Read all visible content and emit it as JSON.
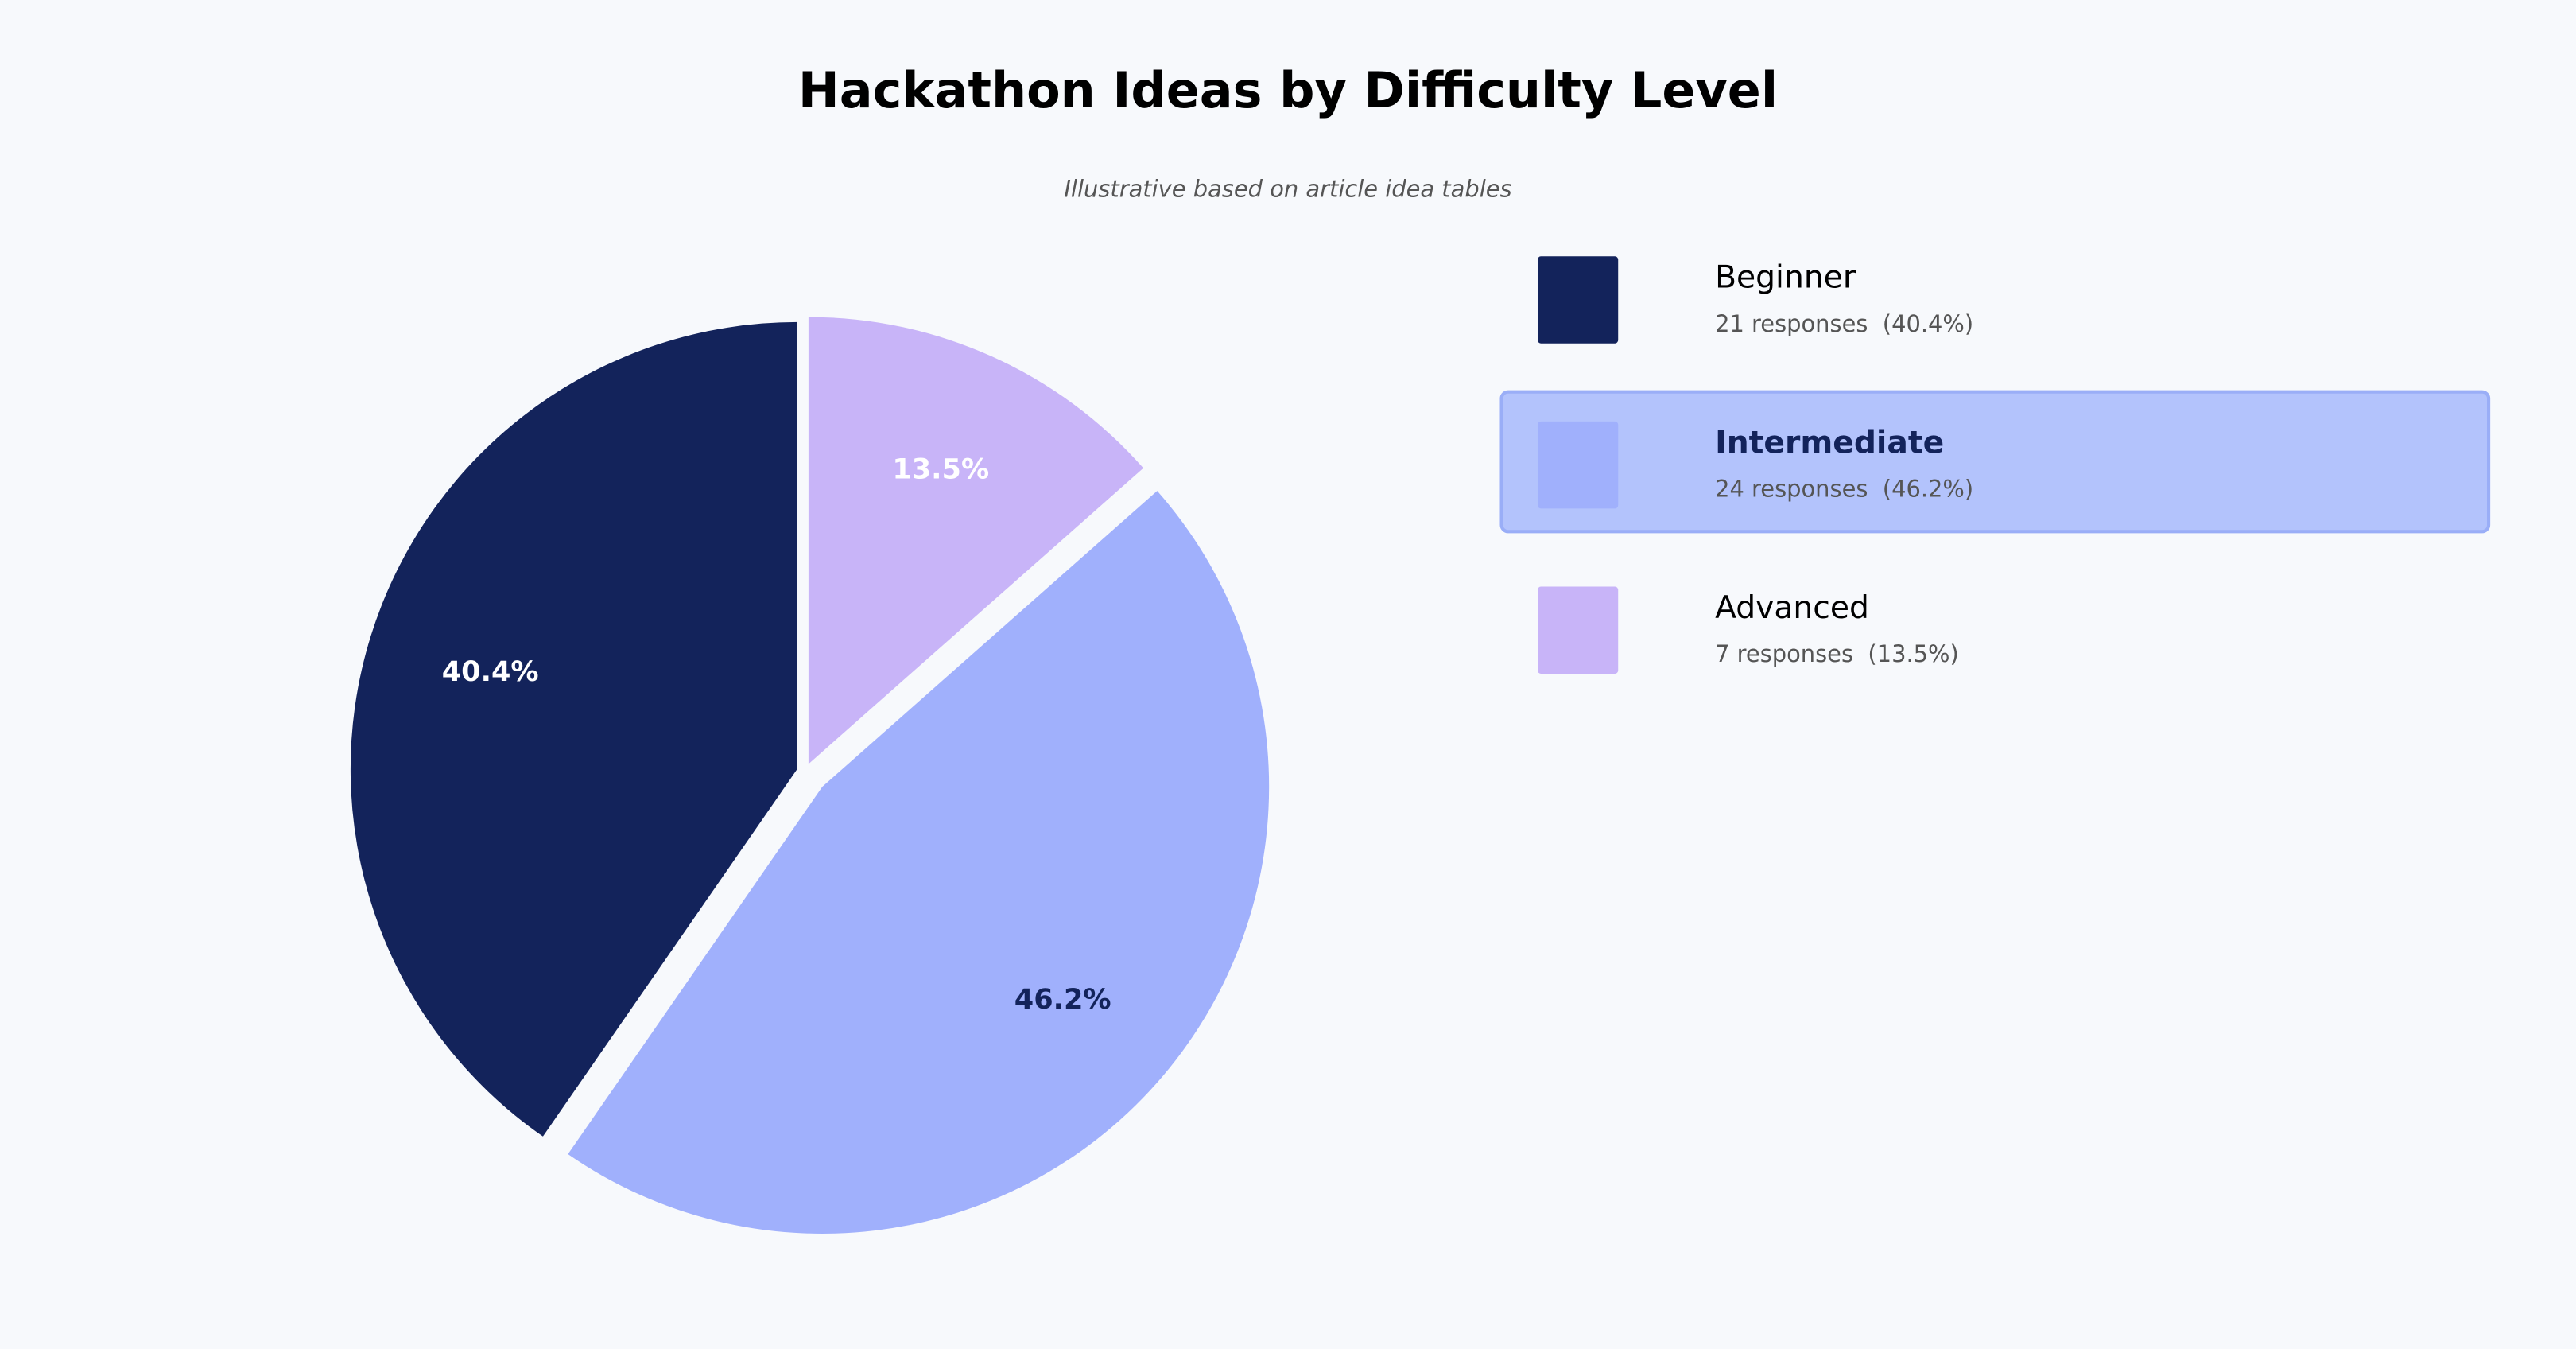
{
  "chart_data": {
    "type": "pie",
    "title": "Hackathon Ideas by Difficulty Level",
    "subtitle": "Illustrative based on article idea tables",
    "categories": [
      "Beginner",
      "Intermediate",
      "Advanced"
    ],
    "values": [
      40.4,
      46.2,
      13.5
    ],
    "value_labels": [
      "40.4%",
      "46.2%",
      "13.5%"
    ],
    "colors": [
      "#13235b",
      "#a0b0fc",
      "#c8b4f8"
    ],
    "legend_details": [
      "21 responses  (40.4%)",
      "24 responses  (46.2%)",
      "7 responses  (13.5%)"
    ],
    "highlight": "Intermediate"
  }
}
